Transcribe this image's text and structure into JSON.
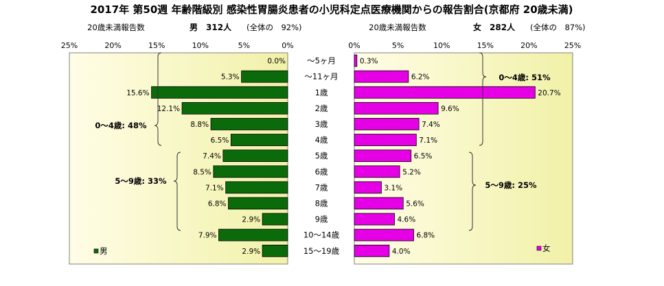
{
  "chart_data": {
    "type": "bar",
    "title": "2017年 第50週 年齢階級別 感染性胃腸炎患者の小児科定点医療機関からの報告割合(京都府 20歳未満)",
    "categories": [
      "～5ヶ月",
      "～11ヶ月",
      "1歳",
      "2歳",
      "3歳",
      "4歳",
      "5歳",
      "6歳",
      "7歳",
      "8歳",
      "9歳",
      "10～14歳",
      "15～19歳"
    ],
    "xlim": [
      0,
      25
    ],
    "xticks": [
      "25%",
      "20%",
      "15%",
      "10%",
      "5%",
      "0%"
    ],
    "xticks_right": [
      "0%",
      "5%",
      "10%",
      "15%",
      "20%",
      "25%"
    ],
    "male": {
      "legend": "男",
      "header_left": "20歳未満報告数",
      "header_count": "男　312人",
      "header_share": "(全体の　92%)",
      "color": "#0b6b0b",
      "values": [
        0.0,
        5.3,
        15.6,
        12.1,
        8.8,
        6.5,
        7.4,
        8.5,
        7.1,
        6.8,
        2.9,
        7.9,
        2.9
      ],
      "labels": [
        "0.0%",
        "5.3%",
        "15.6%",
        "12.1%",
        "8.8%",
        "6.5%",
        "7.4%",
        "8.5%",
        "7.1%",
        "6.8%",
        "2.9%",
        "7.9%",
        "2.9%"
      ],
      "groups": [
        {
          "label": "0～4歳: 48%"
        },
        {
          "label": "5～9歳: 33%"
        }
      ]
    },
    "female": {
      "legend": "女",
      "header_left": "20歳未満報告数",
      "header_count": "女　282人",
      "header_share": "(全体の　87%)",
      "color": "#e600e6",
      "values": [
        0.3,
        6.2,
        20.7,
        9.6,
        7.4,
        7.1,
        6.5,
        5.2,
        3.1,
        5.6,
        4.6,
        6.8,
        4.0
      ],
      "labels": [
        "0.3%",
        "6.2%",
        "20.7%",
        "9.6%",
        "7.4%",
        "7.1%",
        "6.5%",
        "5.2%",
        "3.1%",
        "5.6%",
        "4.6%",
        "6.8%",
        "4.0%"
      ],
      "groups": [
        {
          "label": "0～4歳: 51%"
        },
        {
          "label": "5～9歳: 25%"
        }
      ]
    },
    "plot_background": "#fffde6",
    "plot_gradient_end": "#f1f1a8"
  }
}
